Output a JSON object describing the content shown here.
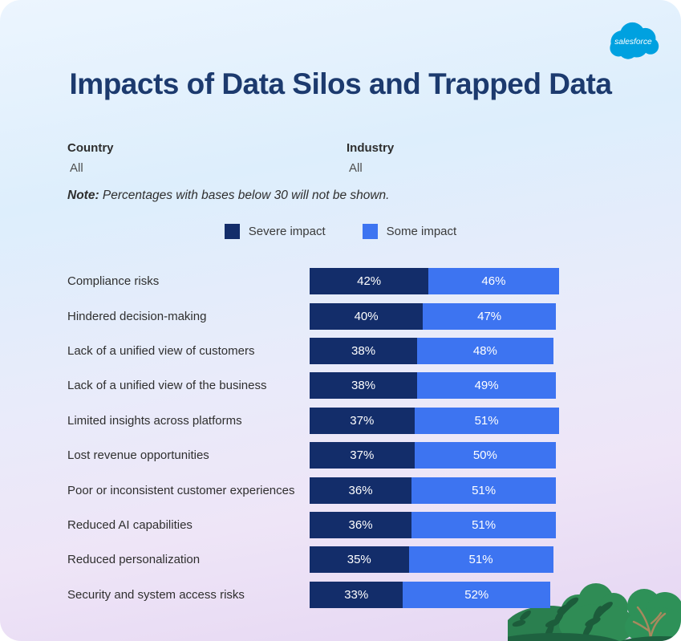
{
  "page": {
    "title": "Impacts of Data Silos and Trapped Data"
  },
  "theme": {
    "title_color": "#1C3A6E",
    "severe_color": "#132D6A",
    "some_color": "#3D74F1",
    "salesforce_blue": "#00A1E0",
    "background_top": "#E3F0FD",
    "background_bottom": "#E5D5F2"
  },
  "logo": {
    "text": "salesforce",
    "color": "#00A1E0"
  },
  "filters": [
    {
      "label": "Country",
      "value": "All"
    },
    {
      "label": "Industry",
      "value": "All"
    }
  ],
  "note": {
    "prefix": "Note:",
    "text": " Percentages with bases below 30 will not be shown."
  },
  "legend": [
    {
      "label": "Severe impact",
      "color": "#132D6A"
    },
    {
      "label": "Some impact",
      "color": "#3D74F1"
    }
  ],
  "chart_data": {
    "type": "bar",
    "orientation": "horizontal",
    "stacked": true,
    "title": "Impacts of Data Silos and Trapped Data",
    "xlabel": "",
    "ylabel": "",
    "xlim": [
      0,
      100
    ],
    "grid": false,
    "legend_position": "top",
    "value_suffix": "%",
    "categories": [
      "Compliance risks",
      "Hindered decision-making",
      "Lack of a unified view of customers",
      "Lack of a unified view of the business",
      "Limited insights across platforms",
      "Lost revenue opportunities",
      "Poor or inconsistent customer experiences",
      "Reduced AI capabilities",
      "Reduced personalization",
      "Security and system access risks"
    ],
    "series": [
      {
        "name": "Severe impact",
        "color": "#132D6A",
        "values": [
          42,
          40,
          38,
          38,
          37,
          37,
          36,
          36,
          35,
          33
        ]
      },
      {
        "name": "Some impact",
        "color": "#3D74F1",
        "values": [
          46,
          47,
          48,
          49,
          51,
          50,
          51,
          51,
          51,
          52
        ]
      }
    ]
  }
}
